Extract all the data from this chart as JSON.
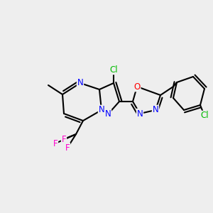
{
  "bg_color": "#eeeeee",
  "atom_colors": {
    "N": "#0000ff",
    "O": "#ff0000",
    "F": "#ff00cc",
    "Cl": "#00bb00",
    "C": "#000000"
  },
  "bond_lw": 1.5,
  "font_size": 8.5,
  "figsize": [
    3.0,
    3.0
  ],
  "dpi": 100
}
